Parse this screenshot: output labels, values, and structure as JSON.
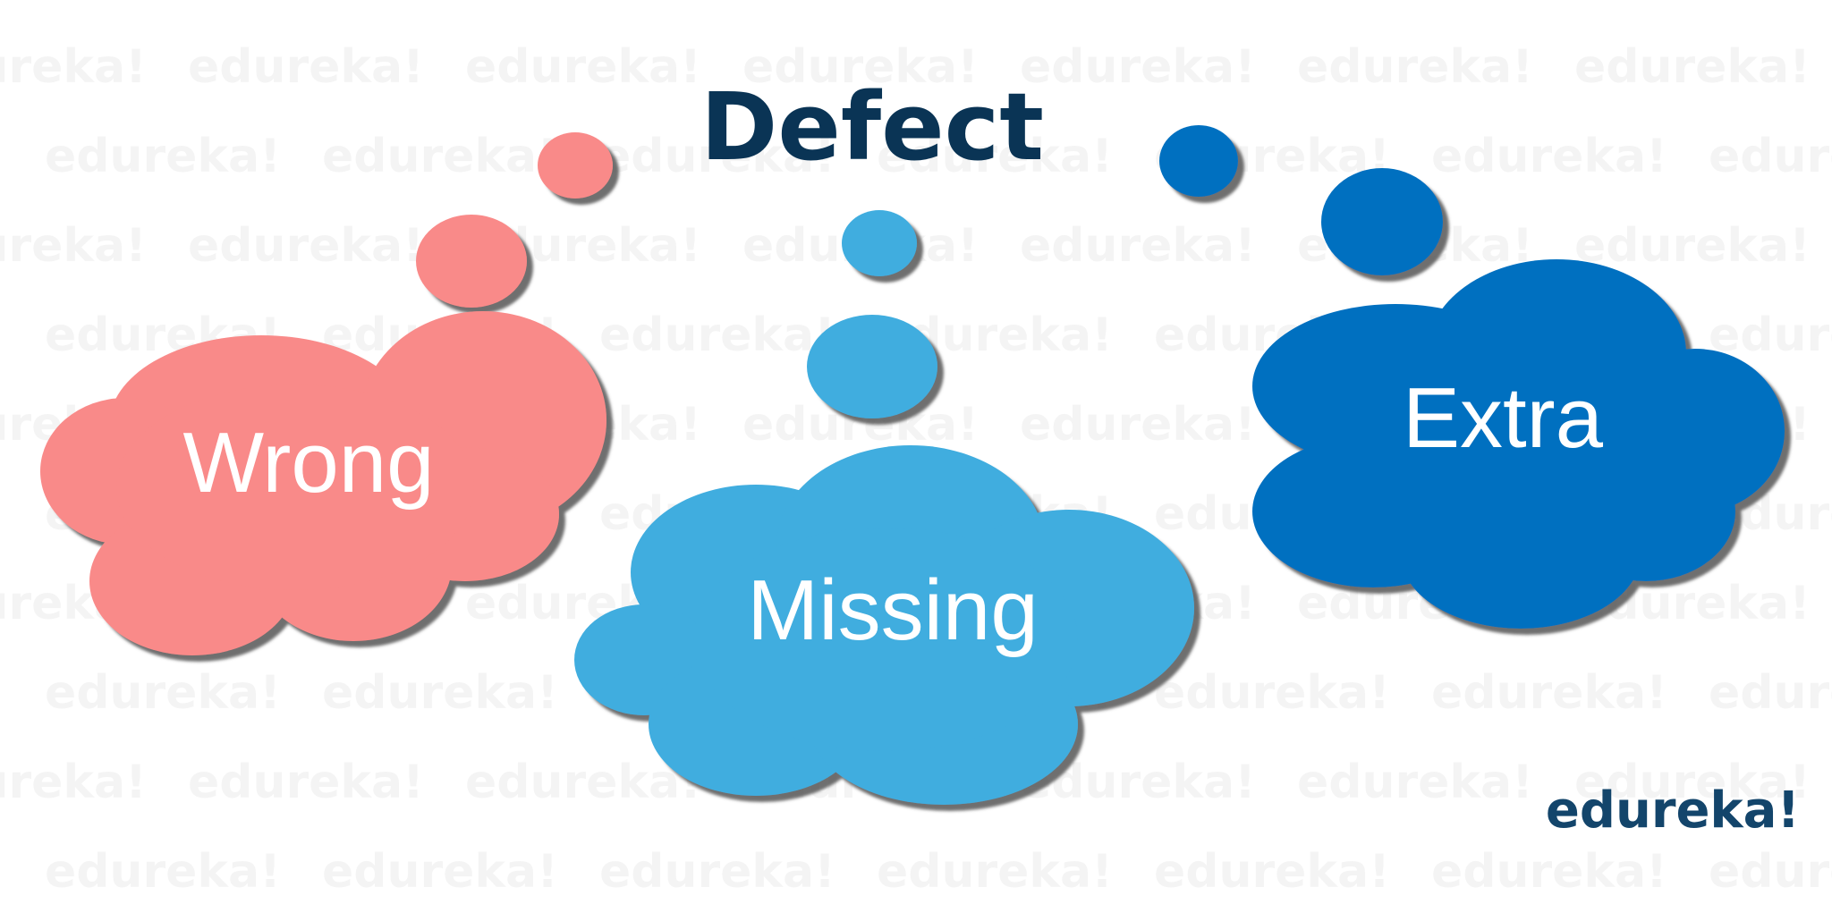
{
  "title": "Defect",
  "watermark_text": "edureka!",
  "logo": "edureka!",
  "clouds": [
    {
      "label": "Wrong",
      "color": "#f98a89"
    },
    {
      "label": "Missing",
      "color": "#40addf"
    },
    {
      "label": "Extra",
      "color": "#0570c0"
    }
  ],
  "colors": {
    "title": "#0a3455",
    "logo": "#13456b",
    "shadow": "#555555",
    "background": "#ffffff"
  }
}
